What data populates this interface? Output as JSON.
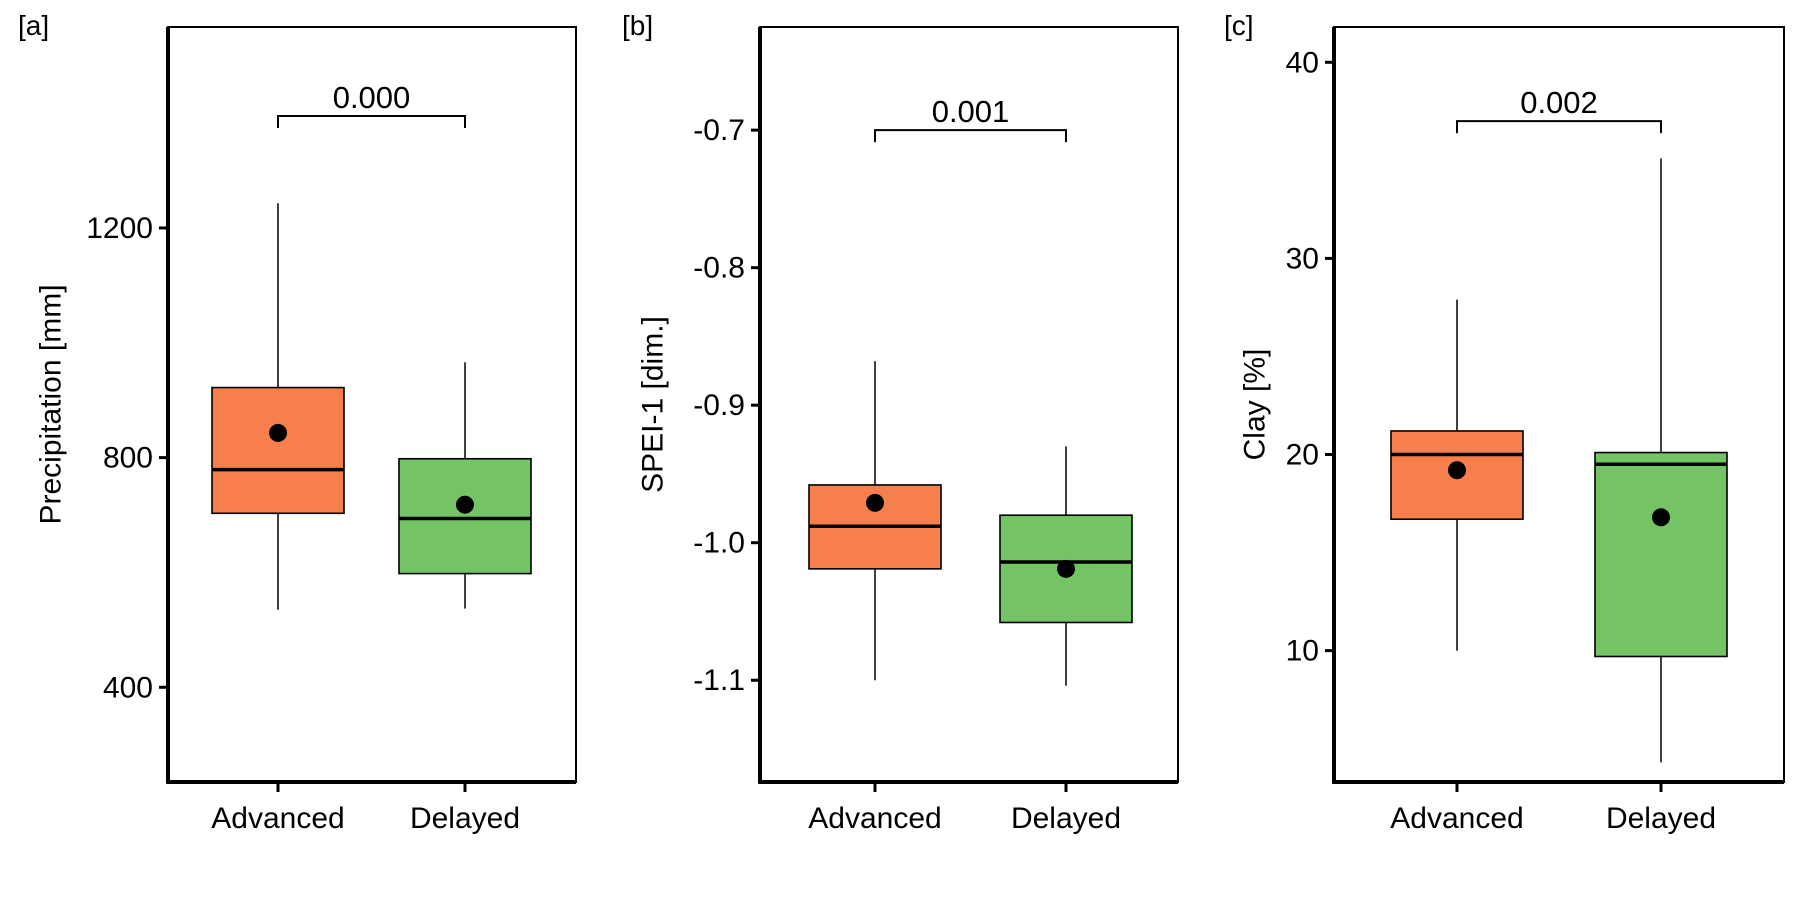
{
  "chart_data": [
    {
      "type": "box",
      "panel_label": "[a]",
      "ylabel": "Precipitation [mm]",
      "ylim": [
        235,
        1550
      ],
      "yticks": [
        400,
        800,
        1200
      ],
      "categories": [
        "Advanced",
        "Delayed"
      ],
      "boxes": [
        {
          "category": "Advanced",
          "whisker_low": 535,
          "q1": 703,
          "median": 779,
          "q3": 922,
          "whisker_high": 1243,
          "mean": 843
        },
        {
          "category": "Delayed",
          "whisker_low": 537,
          "q1": 598,
          "median": 694,
          "q3": 798,
          "whisker_high": 966,
          "mean": 718
        }
      ],
      "significance": {
        "label": "0.000",
        "y": 1395
      }
    },
    {
      "type": "box",
      "panel_label": "[b]",
      "ylabel": "SPEI-1 [dim.]",
      "ylim": [
        -1.174,
        -0.625
      ],
      "yticks": [
        -1.1,
        -1.0,
        -0.9,
        -0.8,
        -0.7
      ],
      "ytick_labels": [
        "-1.1",
        "-1.0",
        "-0.9",
        "-0.8",
        "-0.7"
      ],
      "categories": [
        "Advanced",
        "Delayed"
      ],
      "boxes": [
        {
          "category": "Advanced",
          "whisker_low": -1.1,
          "q1": -1.019,
          "median": -0.988,
          "q3": -0.958,
          "whisker_high": -0.868,
          "mean": -0.971
        },
        {
          "category": "Delayed",
          "whisker_low": -1.104,
          "q1": -1.058,
          "median": -1.014,
          "q3": -0.98,
          "whisker_high": -0.93,
          "mean": -1.019
        }
      ],
      "significance": {
        "label": "0.001",
        "y": -0.7
      }
    },
    {
      "type": "box",
      "panel_label": "[c]",
      "ylabel": "Clay [%]",
      "ylim": [
        3.3,
        41.8
      ],
      "yticks": [
        10,
        20,
        30,
        40
      ],
      "categories": [
        "Advanced",
        "Delayed"
      ],
      "boxes": [
        {
          "category": "Advanced",
          "whisker_low": 10.0,
          "q1": 16.7,
          "median": 20.0,
          "q3": 21.2,
          "whisker_high": 27.9,
          "mean": 19.2
        },
        {
          "category": "Delayed",
          "whisker_low": 4.3,
          "q1": 9.7,
          "median": 19.5,
          "q3": 20.1,
          "whisker_high": 35.1,
          "mean": 16.8
        }
      ],
      "significance": {
        "label": "0.002",
        "y": 37.0
      }
    }
  ],
  "colors": {
    "Advanced": "#F67F4B",
    "Delayed": "#74C465",
    "line": "#000000"
  }
}
